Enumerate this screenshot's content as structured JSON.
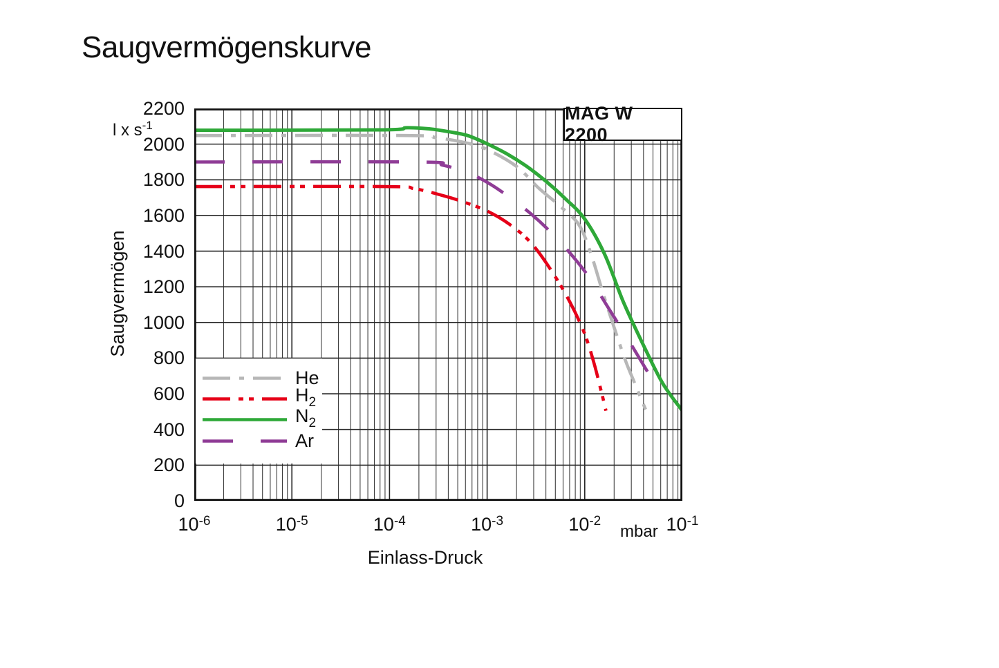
{
  "title": "Saugvermögenskurve",
  "model_label": "MAG W 2200",
  "axes": {
    "y_label": "Saugvermögen",
    "y_unit": "l x s",
    "y_unit_sup": "-1",
    "x_label": "Einlass-Druck",
    "x_unit": "mbar"
  },
  "chart_data": {
    "type": "line",
    "title": "Saugvermögenskurve",
    "xlabel": "Einlass-Druck",
    "ylabel": "Saugvermögen",
    "x_unit": "mbar",
    "y_unit": "l x s^-1",
    "x_scale": "log",
    "xlim": [
      1e-06,
      0.1
    ],
    "ylim": [
      0,
      2200
    ],
    "y_ticks": [
      0,
      200,
      400,
      600,
      800,
      1000,
      1200,
      1400,
      1600,
      1800,
      2000,
      2200
    ],
    "x_tick_exponents": [
      -6,
      -5,
      -4,
      -3,
      -2,
      -1
    ],
    "grid": "log-x minor gridlines on, horizontal gridlines every 200",
    "legend_position": "inside lower-left",
    "annotation_box": "MAG W 2200",
    "series": [
      {
        "name": "He",
        "sub": "",
        "color": "#b7b7b7",
        "dash": [
          40,
          13,
          7,
          13
        ],
        "style": "dash-dot",
        "points": [
          [
            1e-06,
            2048
          ],
          [
            0.00015,
            2048
          ],
          [
            0.0003,
            2036
          ],
          [
            0.0006,
            2008
          ],
          [
            0.001,
            1970
          ],
          [
            0.002,
            1875
          ],
          [
            0.0034,
            1752
          ],
          [
            0.0056,
            1652
          ],
          [
            0.0087,
            1548
          ],
          [
            0.0115,
            1390
          ],
          [
            0.016,
            1135
          ],
          [
            0.025,
            815
          ],
          [
            0.032,
            668
          ],
          [
            0.042,
            512
          ]
        ]
      },
      {
        "name": "H",
        "sub": "2",
        "color": "#e60018",
        "dash": [
          40,
          12,
          7,
          8,
          7,
          12
        ],
        "style": "dash-dot-dot",
        "points": [
          [
            1e-06,
            1762
          ],
          [
            9e-05,
            1762
          ],
          [
            0.00018,
            1750
          ],
          [
            0.00035,
            1712
          ],
          [
            0.0006,
            1672
          ],
          [
            0.001,
            1625
          ],
          [
            0.0017,
            1550
          ],
          [
            0.0028,
            1448
          ],
          [
            0.0045,
            1295
          ],
          [
            0.007,
            1118
          ],
          [
            0.01,
            935
          ],
          [
            0.0125,
            768
          ],
          [
            0.015,
            598
          ],
          [
            0.0165,
            505
          ]
        ]
      },
      {
        "name": "N",
        "sub": "2",
        "color": "#2ea838",
        "dash": [],
        "style": "solid",
        "points": [
          [
            1e-06,
            2078
          ],
          [
            8e-05,
            2080
          ],
          [
            0.00015,
            2092
          ],
          [
            0.00025,
            2086
          ],
          [
            0.0004,
            2070
          ],
          [
            0.00063,
            2048
          ],
          [
            0.001,
            2002
          ],
          [
            0.0016,
            1945
          ],
          [
            0.0025,
            1878
          ],
          [
            0.004,
            1792
          ],
          [
            0.0063,
            1695
          ],
          [
            0.01,
            1580
          ],
          [
            0.016,
            1382
          ],
          [
            0.025,
            1112
          ],
          [
            0.04,
            872
          ],
          [
            0.063,
            658
          ],
          [
            0.1,
            505
          ]
        ]
      },
      {
        "name": "Ar",
        "sub": "",
        "color": "#8f3c96",
        "dash": [
          44,
          40
        ],
        "style": "long-dash",
        "points": [
          [
            1e-06,
            1900
          ],
          [
            0.0002,
            1900
          ],
          [
            0.00035,
            1882
          ],
          [
            0.0006,
            1845
          ],
          [
            0.001,
            1786
          ],
          [
            0.0017,
            1702
          ],
          [
            0.0028,
            1610
          ],
          [
            0.0045,
            1506
          ],
          [
            0.007,
            1392
          ],
          [
            0.011,
            1256
          ],
          [
            0.017,
            1092
          ],
          [
            0.027,
            916
          ],
          [
            0.042,
            742
          ],
          [
            0.06,
            600
          ]
        ]
      }
    ]
  }
}
